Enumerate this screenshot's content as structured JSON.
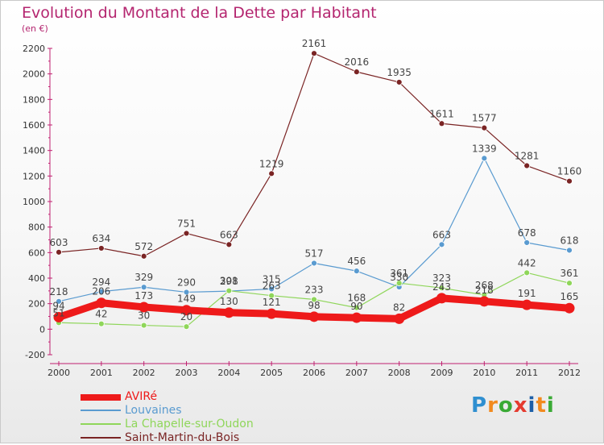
{
  "title": "Evolution du Montant de la Dette par Habitant",
  "subtitle": "(en €)",
  "logo": {
    "letters": [
      "P",
      "r",
      "o",
      "x",
      "i",
      "t",
      "i"
    ]
  },
  "chart_data": {
    "type": "line",
    "x": [
      "2000",
      "2001",
      "2002",
      "2003",
      "2004",
      "2005",
      "2006",
      "2007",
      "2008",
      "2009",
      "2010",
      "2011",
      "2012"
    ],
    "ylim": [
      -200,
      2200
    ],
    "yticks": [
      "-200",
      "0",
      "200",
      "400",
      "600",
      "800",
      "1000",
      "1200",
      "1400",
      "1600",
      "1800",
      "2000",
      "2200"
    ],
    "grid": false,
    "legend_position": "bottom-left",
    "series": [
      {
        "name": "Saint-Martin-du-Bois",
        "color": "#7a2424",
        "values": [
          603,
          634,
          572,
          751,
          663,
          1219,
          2161,
          2016,
          1935,
          1611,
          1577,
          1281,
          1160
        ],
        "labels": [
          "603",
          "634",
          "572",
          "751",
          "663",
          "1219",
          "2161",
          "2016",
          "1935",
          "1611",
          "1577",
          "1281",
          "1160"
        ]
      },
      {
        "name": "Louvaines",
        "color": "#5a9bd0",
        "values": [
          218,
          294,
          329,
          290,
          298,
          315,
          517,
          456,
          330,
          663,
          1339,
          678,
          618
        ],
        "labels": [
          "218",
          "294",
          "329",
          "290",
          "298",
          "315",
          "517",
          "456",
          "330",
          "663",
          "1339",
          "678",
          "618"
        ]
      },
      {
        "name": "La Chapelle-sur-Oudon",
        "color": "#8fd65a",
        "values": [
          51,
          42,
          30,
          20,
          301,
          263,
          233,
          168,
          361,
          323,
          268,
          442,
          361
        ],
        "labels": [
          "51",
          "42",
          "30",
          "20",
          "301",
          "263",
          "233",
          "168",
          "361",
          "323",
          "268",
          "442",
          "361"
        ]
      },
      {
        "name": "AVIRé",
        "color": "#ee1a1a",
        "values": [
          94,
          206,
          173,
          149,
          130,
          121,
          98,
          90,
          82,
          243,
          218,
          191,
          165
        ],
        "labels": [
          "94",
          "206",
          "173",
          "149",
          "130",
          "121",
          "98",
          "90",
          "82",
          "243",
          "218",
          "191",
          "165"
        ]
      }
    ],
    "legend_order": [
      "AVIRé",
      "Louvaines",
      "La Chapelle-sur-Oudon",
      "Saint-Martin-du-Bois"
    ]
  }
}
